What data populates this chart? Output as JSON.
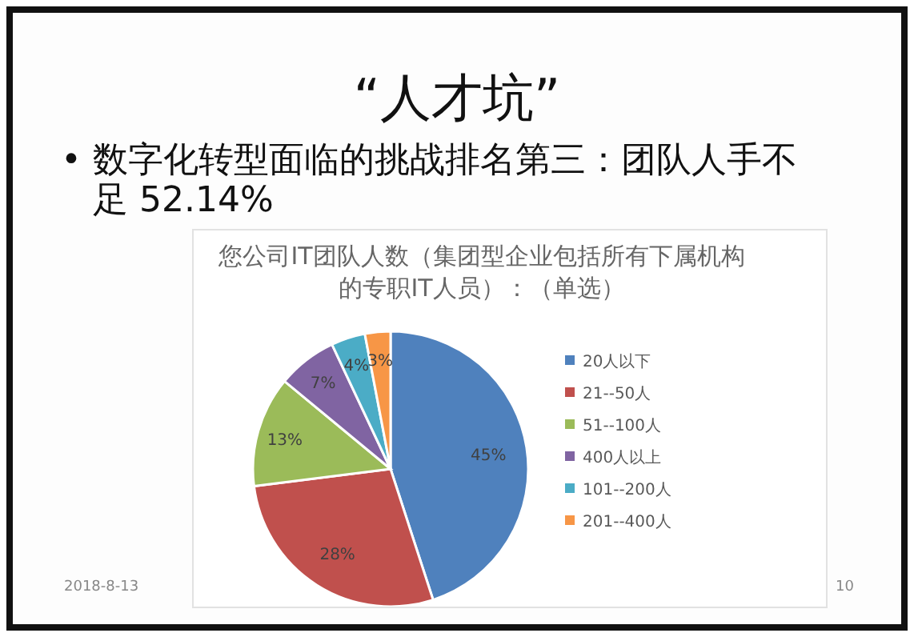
{
  "chart_data": {
    "type": "pie",
    "title": "您公司IT团队人数（集团型企业包括所有下属机构的专职IT人员）：（单选）",
    "categories": [
      "20人以下",
      "21--50人",
      "51--100人",
      "400人以上",
      "101--200人",
      "201--400人"
    ],
    "values": [
      45,
      28,
      13,
      7,
      4,
      3
    ],
    "colors": [
      "#4f81bd",
      "#c0504d",
      "#9bbb59",
      "#8064a2",
      "#4bacc6",
      "#f79646"
    ],
    "value_labels": [
      "45%",
      "28%",
      "13%",
      "7%",
      "4%",
      "3%"
    ],
    "legend": "right",
    "annotations": [
      "“人才坑”",
      "• 数字化转型面临的挑战排名第三：团队人手不足  52.14%",
      "2018-8-13",
      "10"
    ]
  }
}
